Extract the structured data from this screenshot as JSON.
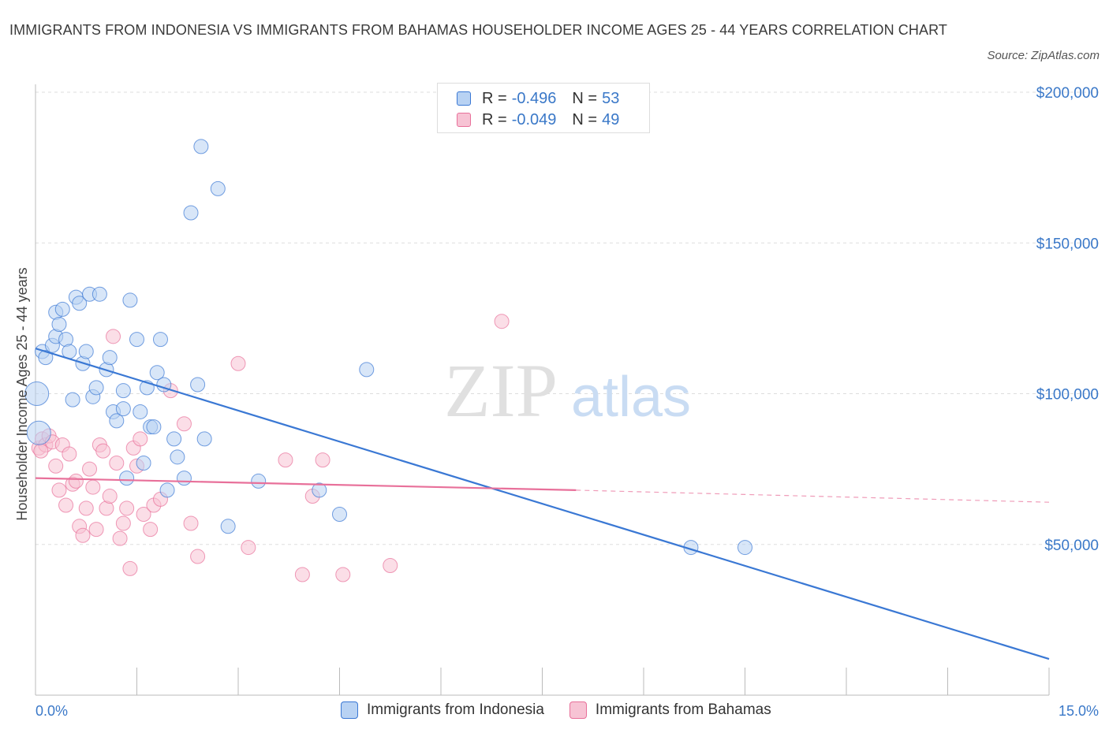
{
  "title": "IMMIGRANTS FROM INDONESIA VS IMMIGRANTS FROM BAHAMAS HOUSEHOLDER INCOME AGES 25 - 44 YEARS CORRELATION CHART",
  "source": "Source: ZipAtlas.com",
  "watermark": {
    "zip": "ZIP",
    "atlas": "atlas"
  },
  "colors": {
    "blue": "#3a78d4",
    "blue_fill": "#b8d2f3",
    "pink": "#e8709a",
    "pink_fill": "#f7c3d4",
    "tick_text": "#3a78c8",
    "grid": "#dddddd"
  },
  "legend": {
    "rows": [
      {
        "r_label": "R = ",
        "r_value": "-0.496",
        "n_label": "N = ",
        "n_value": "53"
      },
      {
        "r_label": "R = ",
        "r_value": "-0.049",
        "n_label": "N = ",
        "n_value": "49"
      }
    ]
  },
  "chart_data": {
    "type": "scatter",
    "xlabel": "",
    "ylabel": "Householder Income Ages 25 - 44 years",
    "xlim": [
      0,
      15
    ],
    "ylim": [
      0,
      200000
    ],
    "x_tick_labels": [
      {
        "value": 0,
        "label": "0.0%"
      },
      {
        "value": 15,
        "label": "15.0%"
      }
    ],
    "y_tick_labels": [
      {
        "value": 50000,
        "label": "$50,000"
      },
      {
        "value": 100000,
        "label": "$100,000"
      },
      {
        "value": 150000,
        "label": "$150,000"
      },
      {
        "value": 200000,
        "label": "$200,000"
      }
    ],
    "grid": "horizontal dashed",
    "legend_position": "top-center",
    "series": [
      {
        "name": "Immigrants from Indonesia",
        "color": "#3a78d4",
        "points": [
          [
            0.02,
            100000
          ],
          [
            0.05,
            87000
          ],
          [
            0.1,
            114000
          ],
          [
            0.15,
            112000
          ],
          [
            0.25,
            116000
          ],
          [
            0.3,
            119000
          ],
          [
            0.3,
            127000
          ],
          [
            0.35,
            123000
          ],
          [
            0.4,
            128000
          ],
          [
            0.45,
            118000
          ],
          [
            0.5,
            114000
          ],
          [
            0.55,
            98000
          ],
          [
            0.6,
            132000
          ],
          [
            0.65,
            130000
          ],
          [
            0.7,
            110000
          ],
          [
            0.75,
            114000
          ],
          [
            0.8,
            133000
          ],
          [
            0.85,
            99000
          ],
          [
            0.9,
            102000
          ],
          [
            0.95,
            133000
          ],
          [
            1.05,
            108000
          ],
          [
            1.1,
            112000
          ],
          [
            1.15,
            94000
          ],
          [
            1.2,
            91000
          ],
          [
            1.3,
            95000
          ],
          [
            1.3,
            101000
          ],
          [
            1.35,
            72000
          ],
          [
            1.4,
            131000
          ],
          [
            1.5,
            118000
          ],
          [
            1.55,
            94000
          ],
          [
            1.6,
            77000
          ],
          [
            1.65,
            102000
          ],
          [
            1.7,
            89000
          ],
          [
            1.75,
            89000
          ],
          [
            1.8,
            107000
          ],
          [
            1.85,
            118000
          ],
          [
            1.9,
            103000
          ],
          [
            1.95,
            68000
          ],
          [
            2.05,
            85000
          ],
          [
            2.1,
            79000
          ],
          [
            2.2,
            72000
          ],
          [
            2.3,
            160000
          ],
          [
            2.4,
            103000
          ],
          [
            2.45,
            182000
          ],
          [
            2.5,
            85000
          ],
          [
            2.7,
            168000
          ],
          [
            2.85,
            56000
          ],
          [
            3.3,
            71000
          ],
          [
            4.2,
            68000
          ],
          [
            4.5,
            60000
          ],
          [
            4.9,
            108000
          ],
          [
            9.7,
            49000
          ],
          [
            10.5,
            49000
          ]
        ],
        "trend": {
          "x": [
            0,
            15
          ],
          "y": [
            115000,
            12000
          ],
          "style": "solid"
        }
      },
      {
        "name": "Immigrants from Bahamas",
        "color": "#e8709a",
        "points": [
          [
            0.05,
            82000
          ],
          [
            0.1,
            85000
          ],
          [
            0.15,
            83000
          ],
          [
            0.2,
            86000
          ],
          [
            0.25,
            84000
          ],
          [
            0.3,
            76000
          ],
          [
            0.35,
            68000
          ],
          [
            0.4,
            83000
          ],
          [
            0.45,
            63000
          ],
          [
            0.5,
            80000
          ],
          [
            0.55,
            70000
          ],
          [
            0.6,
            71000
          ],
          [
            0.65,
            56000
          ],
          [
            0.7,
            53000
          ],
          [
            0.75,
            62000
          ],
          [
            0.8,
            75000
          ],
          [
            0.85,
            69000
          ],
          [
            0.9,
            55000
          ],
          [
            0.95,
            83000
          ],
          [
            1.0,
            81000
          ],
          [
            1.05,
            62000
          ],
          [
            1.1,
            66000
          ],
          [
            1.15,
            119000
          ],
          [
            1.2,
            77000
          ],
          [
            1.25,
            52000
          ],
          [
            1.3,
            57000
          ],
          [
            1.35,
            62000
          ],
          [
            1.4,
            42000
          ],
          [
            1.45,
            82000
          ],
          [
            1.5,
            76000
          ],
          [
            1.55,
            85000
          ],
          [
            1.6,
            60000
          ],
          [
            1.7,
            55000
          ],
          [
            1.75,
            63000
          ],
          [
            1.85,
            65000
          ],
          [
            2.0,
            101000
          ],
          [
            2.2,
            90000
          ],
          [
            2.3,
            57000
          ],
          [
            2.4,
            46000
          ],
          [
            3.0,
            110000
          ],
          [
            3.15,
            49000
          ],
          [
            3.7,
            78000
          ],
          [
            3.95,
            40000
          ],
          [
            4.1,
            66000
          ],
          [
            4.25,
            78000
          ],
          [
            4.55,
            40000
          ],
          [
            5.25,
            43000
          ],
          [
            6.9,
            124000
          ],
          [
            0.08,
            81000
          ]
        ],
        "trend": {
          "x": [
            0,
            8
          ],
          "y": [
            72000,
            68000
          ],
          "style": "solid",
          "extension": {
            "x": [
              8,
              15
            ],
            "y": [
              68000,
              64000
            ],
            "style": "dashed"
          }
        }
      }
    ]
  }
}
